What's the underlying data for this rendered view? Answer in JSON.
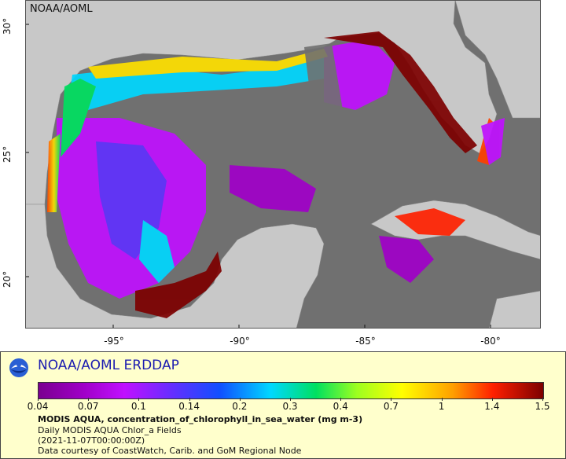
{
  "map": {
    "stamp": "NOAA/AOML",
    "lat_ticks": [
      "30°",
      "25°",
      "20°"
    ],
    "lon_ticks": [
      "-95°",
      "-90°",
      "-85°",
      "-80°"
    ],
    "colors": {
      "ocean_nodata": "#707070",
      "land": "#c8c8c8",
      "frame": "#888888"
    }
  },
  "legend": {
    "title": "NOAA/AOML ERDDAP",
    "colorbar_ticks": [
      "0.04",
      "0.07",
      "0.1",
      "0.14",
      "0.2",
      "0.3",
      "0.4",
      "0.7",
      "1",
      "1.4",
      "1.5"
    ],
    "variable": "MODIS AQUA, concentration_of_chlorophyll_in_sea_water (mg m-3)",
    "dataset": "Daily MODIS AQUA Chlor_a Fields",
    "time": "(2021-11-07T00:00:00Z)",
    "credit": "Data courtesy of CoastWatch, Carib. and GoM Regional Node",
    "background": "#ffffcc",
    "title_color": "#1c1cb0"
  }
}
